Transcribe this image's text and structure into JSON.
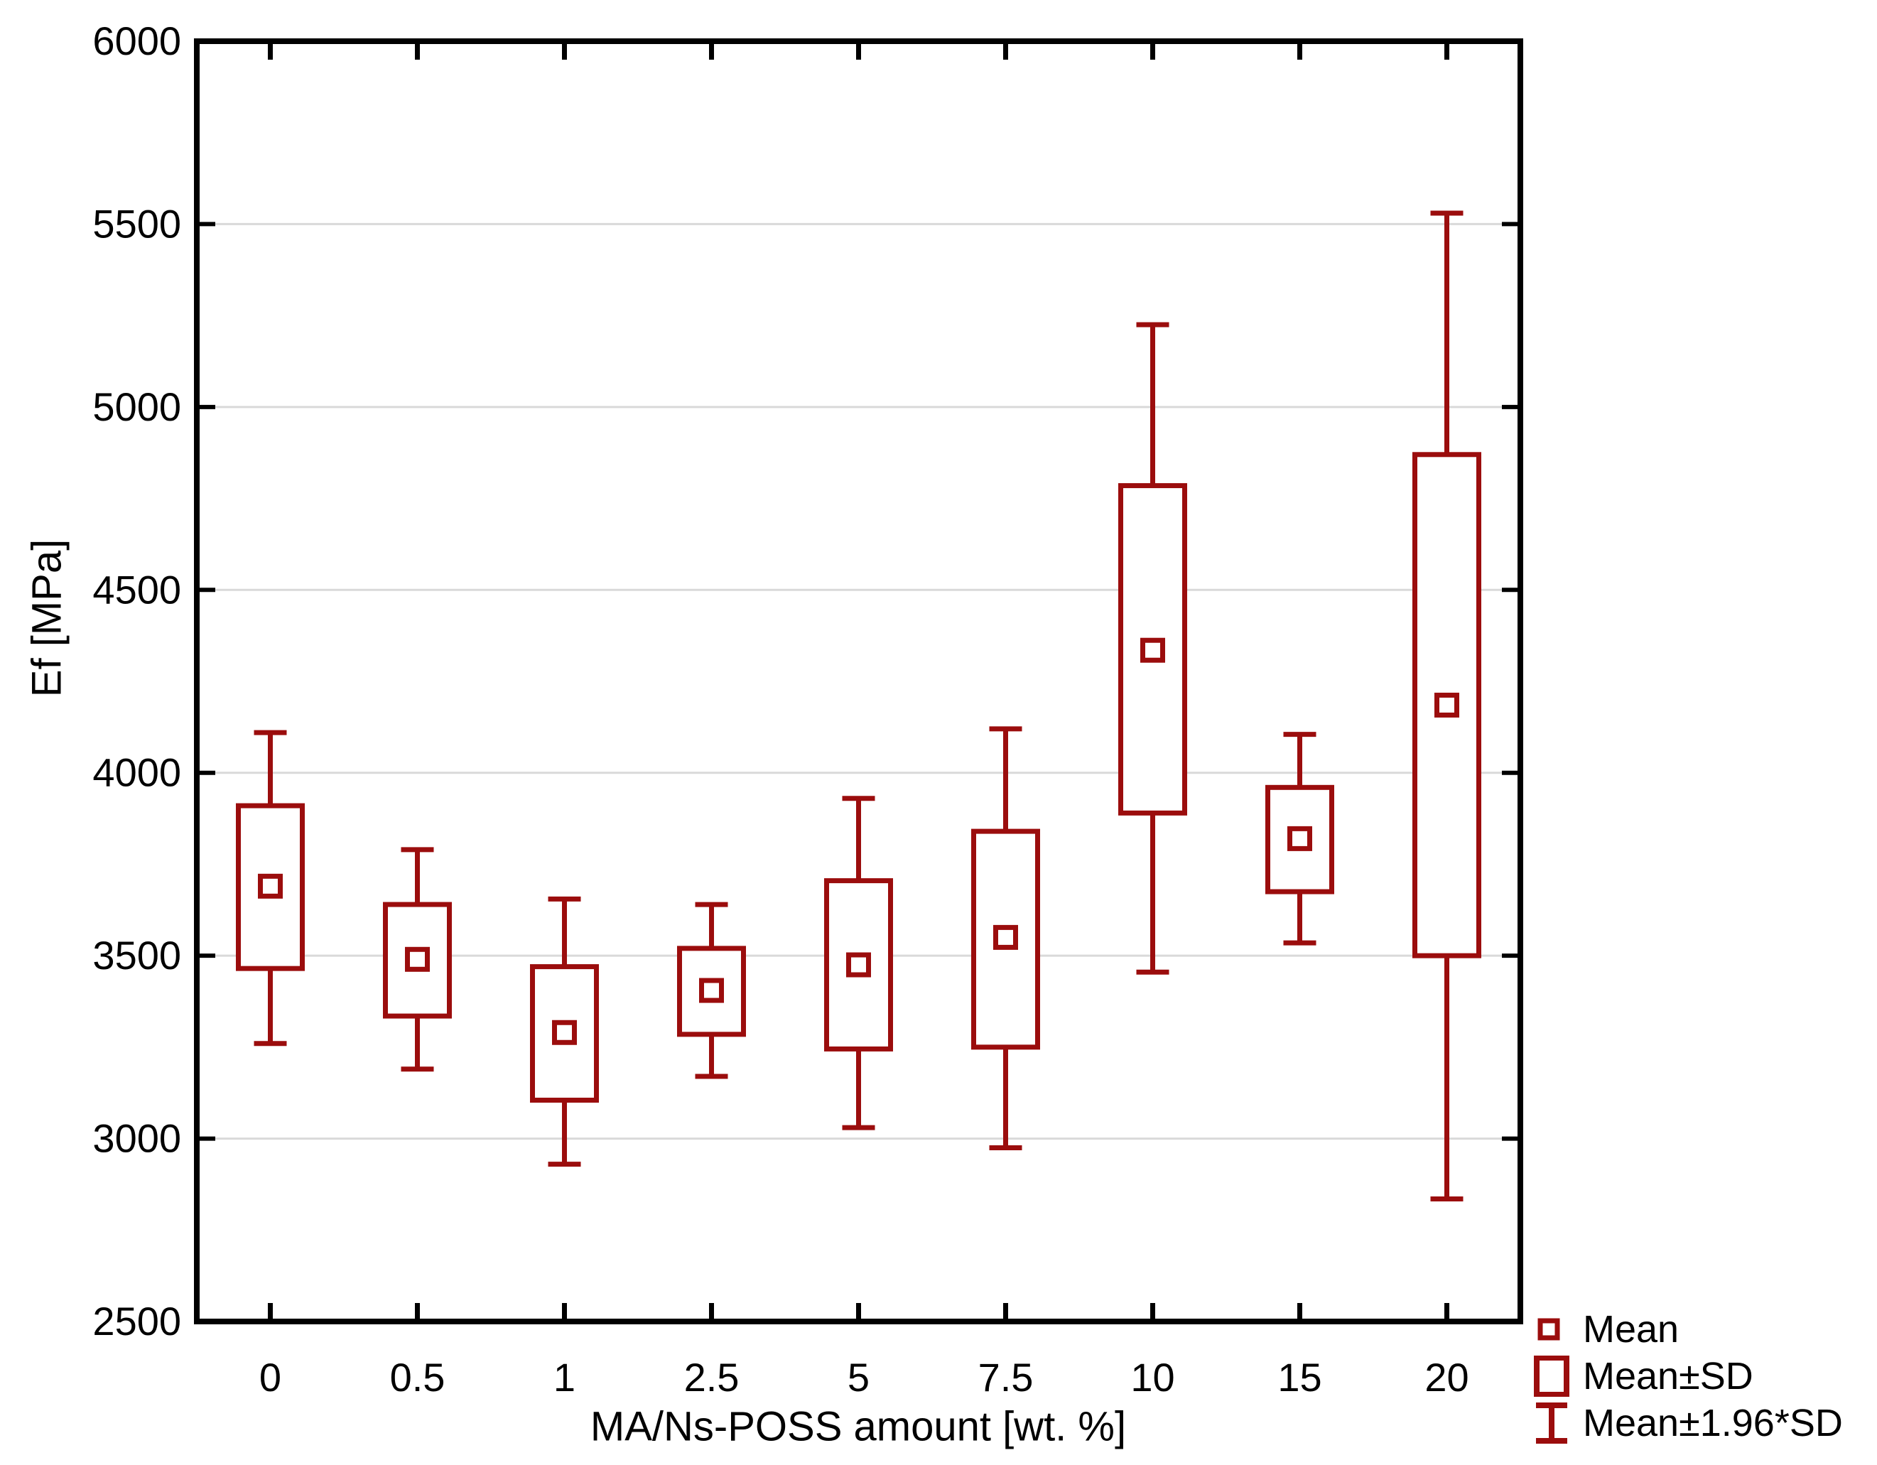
{
  "chart_data": {
    "type": "box",
    "title": "",
    "xlabel": "MA/Ns-POSS amount [wt. %]",
    "ylabel": "Ef [MPa]",
    "ylim": [
      2500,
      6000
    ],
    "yticks": [
      2500,
      3000,
      3500,
      4000,
      4500,
      5000,
      5500,
      6000
    ],
    "grid": "horizontal",
    "legend_position": "bottom-right",
    "categories": [
      "0",
      "0.5",
      "1",
      "2.5",
      "5",
      "7.5",
      "10",
      "15",
      "20"
    ],
    "box_semantics": {
      "center_marker": "mean",
      "box": "mean plus/minus SD",
      "whisker": "mean plus/minus 1.96*SD"
    },
    "boxes": [
      {
        "category": "0",
        "mean": 3690,
        "box_low": 3465,
        "box_high": 3910,
        "whisker_low": 3260,
        "whisker_high": 4110
      },
      {
        "category": "0.5",
        "mean": 3490,
        "box_low": 3335,
        "box_high": 3640,
        "whisker_low": 3190,
        "whisker_high": 3790
      },
      {
        "category": "1",
        "mean": 3290,
        "box_low": 3105,
        "box_high": 3470,
        "whisker_low": 2930,
        "whisker_high": 3655
      },
      {
        "category": "2.5",
        "mean": 3405,
        "box_low": 3285,
        "box_high": 3520,
        "whisker_low": 3170,
        "whisker_high": 3640
      },
      {
        "category": "5",
        "mean": 3475,
        "box_low": 3245,
        "box_high": 3705,
        "whisker_low": 3030,
        "whisker_high": 3930
      },
      {
        "category": "7.5",
        "mean": 3550,
        "box_low": 3250,
        "box_high": 3840,
        "whisker_low": 2975,
        "whisker_high": 4120
      },
      {
        "category": "10",
        "mean": 4335,
        "box_low": 3890,
        "box_high": 4785,
        "whisker_low": 3455,
        "whisker_high": 5225
      },
      {
        "category": "15",
        "mean": 3820,
        "box_low": 3675,
        "box_high": 3960,
        "whisker_low": 3535,
        "whisker_high": 4105
      },
      {
        "category": "20",
        "mean": 4185,
        "box_low": 3500,
        "box_high": 4870,
        "whisker_low": 2835,
        "whisker_high": 5530
      }
    ],
    "colors": {
      "series": "#9b0d0d",
      "grid": "#d9d9d9",
      "axis": "#000000",
      "text": "#000000",
      "background": "#ffffff"
    }
  },
  "legend": {
    "items": [
      {
        "id": "mean",
        "label": "Mean"
      },
      {
        "id": "mean-sd",
        "label": "Mean±SD"
      },
      {
        "id": "mean-196sd",
        "label": "Mean±1.96*SD"
      }
    ]
  }
}
